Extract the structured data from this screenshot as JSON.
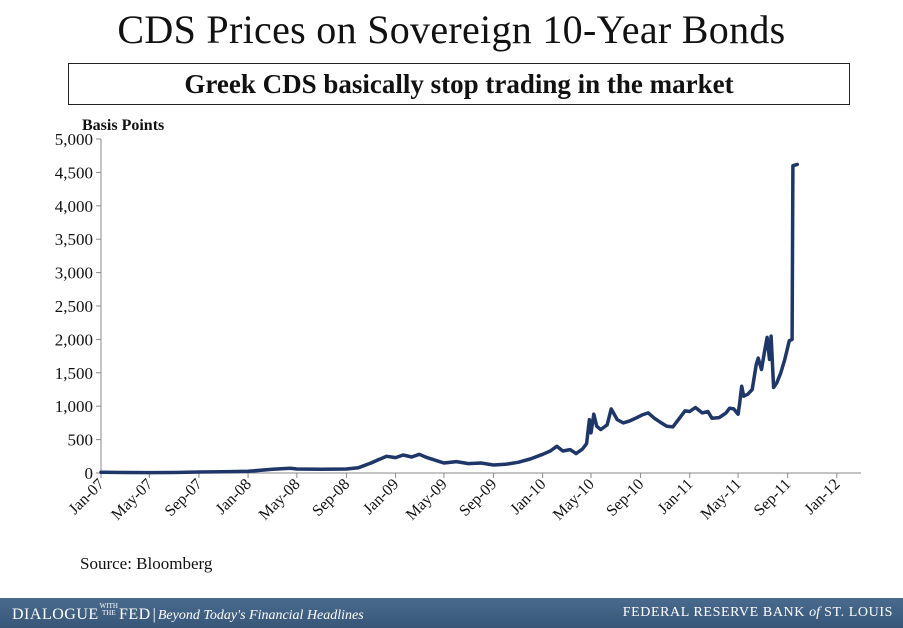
{
  "slide": {
    "title": "CDS Prices on Sovereign 10-Year Bonds",
    "subtitle": "Greek CDS basically stop trading in the market",
    "source": "Source: Bloomberg"
  },
  "footer": {
    "brand_part1": "DIALOGUE",
    "brand_with": "WITH",
    "brand_the": "THE",
    "brand_part2": "FED",
    "separator": "|",
    "tagline": "Beyond Today's Financial Headlines",
    "bank_prefix": "FEDERAL RESERVE BANK",
    "bank_of": "of",
    "bank_suffix": "ST. LOUIS"
  },
  "chart_data": {
    "type": "line",
    "title": "",
    "ylabel": "Basis Points",
    "xlabel": "",
    "ylim": [
      0,
      5000
    ],
    "yticks": [
      0,
      500,
      1000,
      1500,
      2000,
      2500,
      3000,
      3500,
      4000,
      4500,
      5000
    ],
    "ytick_labels": [
      "0",
      "500",
      "1,000",
      "1,500",
      "2,000",
      "2,500",
      "3,000",
      "3,500",
      "4,000",
      "4,500",
      "5,000"
    ],
    "xlim": [
      "2007-01-01",
      "2012-03-01"
    ],
    "xticks": [
      "2007-01-01",
      "2007-05-01",
      "2007-09-01",
      "2008-01-01",
      "2008-05-01",
      "2008-09-01",
      "2009-01-01",
      "2009-05-01",
      "2009-09-01",
      "2010-01-01",
      "2010-05-01",
      "2010-09-01",
      "2011-01-01",
      "2011-05-01",
      "2011-09-01",
      "2012-01-01"
    ],
    "xtick_labels": [
      "Jan-07",
      "May-07",
      "Sep-07",
      "Jan-08",
      "May-08",
      "Sep-08",
      "Jan-09",
      "May-09",
      "Sep-09",
      "Jan-10",
      "May-10",
      "Sep-10",
      "Jan-11",
      "May-11",
      "Sep-11",
      "Jan-12"
    ],
    "grid": false,
    "line_color": "#1f3668",
    "series": [
      {
        "name": "",
        "points": [
          [
            "2007-01-01",
            10
          ],
          [
            "2007-03-01",
            8
          ],
          [
            "2007-05-01",
            6
          ],
          [
            "2007-07-01",
            7
          ],
          [
            "2007-09-01",
            15
          ],
          [
            "2007-11-01",
            18
          ],
          [
            "2008-01-01",
            25
          ],
          [
            "2008-03-01",
            55
          ],
          [
            "2008-04-15",
            70
          ],
          [
            "2008-05-01",
            60
          ],
          [
            "2008-07-01",
            55
          ],
          [
            "2008-09-01",
            60
          ],
          [
            "2008-10-01",
            80
          ],
          [
            "2008-11-01",
            150
          ],
          [
            "2008-11-20",
            200
          ],
          [
            "2008-12-10",
            250
          ],
          [
            "2009-01-01",
            230
          ],
          [
            "2009-01-20",
            270
          ],
          [
            "2009-02-10",
            240
          ],
          [
            "2009-03-01",
            280
          ],
          [
            "2009-03-20",
            230
          ],
          [
            "2009-04-10",
            190
          ],
          [
            "2009-05-01",
            150
          ],
          [
            "2009-06-01",
            170
          ],
          [
            "2009-07-01",
            140
          ],
          [
            "2009-08-01",
            150
          ],
          [
            "2009-09-01",
            120
          ],
          [
            "2009-10-01",
            130
          ],
          [
            "2009-11-01",
            160
          ],
          [
            "2009-12-01",
            210
          ],
          [
            "2010-01-01",
            280
          ],
          [
            "2010-01-20",
            330
          ],
          [
            "2010-02-05",
            400
          ],
          [
            "2010-02-20",
            330
          ],
          [
            "2010-03-10",
            350
          ],
          [
            "2010-03-25",
            290
          ],
          [
            "2010-04-10",
            360
          ],
          [
            "2010-04-20",
            440
          ],
          [
            "2010-04-27",
            800
          ],
          [
            "2010-05-01",
            600
          ],
          [
            "2010-05-08",
            880
          ],
          [
            "2010-05-15",
            700
          ],
          [
            "2010-05-25",
            650
          ],
          [
            "2010-06-10",
            720
          ],
          [
            "2010-06-20",
            960
          ],
          [
            "2010-07-05",
            800
          ],
          [
            "2010-07-20",
            750
          ],
          [
            "2010-08-05",
            780
          ],
          [
            "2010-08-20",
            820
          ],
          [
            "2010-09-05",
            870
          ],
          [
            "2010-09-20",
            900
          ],
          [
            "2010-10-05",
            820
          ],
          [
            "2010-10-20",
            760
          ],
          [
            "2010-11-05",
            700
          ],
          [
            "2010-11-20",
            690
          ],
          [
            "2010-12-05",
            810
          ],
          [
            "2010-12-20",
            930
          ],
          [
            "2011-01-01",
            920
          ],
          [
            "2011-01-15",
            980
          ],
          [
            "2011-02-01",
            900
          ],
          [
            "2011-02-15",
            920
          ],
          [
            "2011-02-25",
            820
          ],
          [
            "2011-03-15",
            830
          ],
          [
            "2011-04-01",
            900
          ],
          [
            "2011-04-10",
            970
          ],
          [
            "2011-04-20",
            960
          ],
          [
            "2011-05-01",
            880
          ],
          [
            "2011-05-05",
            1050
          ],
          [
            "2011-05-10",
            1300
          ],
          [
            "2011-05-15",
            1150
          ],
          [
            "2011-05-25",
            1180
          ],
          [
            "2011-06-05",
            1250
          ],
          [
            "2011-06-15",
            1620
          ],
          [
            "2011-06-20",
            1720
          ],
          [
            "2011-06-28",
            1550
          ],
          [
            "2011-07-05",
            1800
          ],
          [
            "2011-07-12",
            2030
          ],
          [
            "2011-07-18",
            1700
          ],
          [
            "2011-07-22",
            2050
          ],
          [
            "2011-07-28",
            1280
          ],
          [
            "2011-08-05",
            1350
          ],
          [
            "2011-08-15",
            1500
          ],
          [
            "2011-08-25",
            1700
          ],
          [
            "2011-09-05",
            1980
          ],
          [
            "2011-09-12",
            2000
          ],
          [
            "2011-09-14",
            4600
          ],
          [
            "2011-09-25",
            4620
          ]
        ]
      }
    ]
  }
}
